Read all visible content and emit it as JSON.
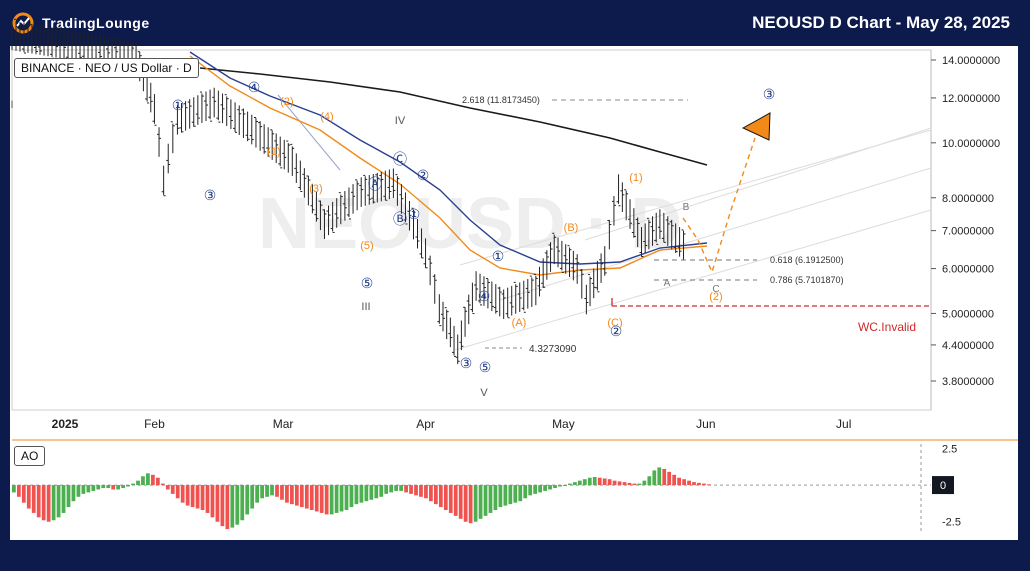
{
  "header": {
    "brand": "TradingLounge",
    "title": "NEOUSD D Chart - May 28, 2025"
  },
  "symbol_label": "BINANCE · NEO / US Dollar · D",
  "indicator_label": "AO",
  "watermark": "NEOUSD · D",
  "colors": {
    "background": "#0d1b4c",
    "accent_orange": "#f28a1a",
    "wave_blue": "#1f3a8a",
    "invalid_red": "#d12a2a",
    "ao_green": "#4caf50",
    "ao_red": "#ef5350"
  },
  "chart_data": {
    "type": "line",
    "scale": "log",
    "xaxis": {
      "ticks": [
        "2025",
        "Feb",
        "Mar",
        "Apr",
        "May",
        "Jun",
        "Jul"
      ]
    },
    "yaxis": {
      "ticks": [
        "14.0000000",
        "12.0000000",
        "10.0000000",
        "8.0000000",
        "7.0000000",
        "6.0000000",
        "5.0000000",
        "4.4000000",
        "3.8000000"
      ],
      "ylim": [
        3.5,
        15.0
      ]
    },
    "price_ohlc_approx": [
      {
        "date": "2025-01",
        "close": 15.5
      },
      {
        "date": "2025-01-28",
        "close": 14.2
      },
      {
        "date": "2025-02-01",
        "close": 11.5
      },
      {
        "date": "2025-02-03",
        "close": 8.6
      },
      {
        "date": "2025-02-06",
        "close": 11.0
      },
      {
        "date": "2025-02-14",
        "close": 11.8
      },
      {
        "date": "2025-02-24",
        "close": 10.3
      },
      {
        "date": "2025-03-03",
        "close": 9.3
      },
      {
        "date": "2025-03-10",
        "close": 7.2
      },
      {
        "date": "2025-03-18",
        "close": 8.2
      },
      {
        "date": "2025-03-25",
        "close": 8.5
      },
      {
        "date": "2025-04-01",
        "close": 6.4
      },
      {
        "date": "2025-04-04",
        "close": 5.1
      },
      {
        "date": "2025-04-08",
        "close": 4.33
      },
      {
        "date": "2025-04-12",
        "close": 5.6
      },
      {
        "date": "2025-04-18",
        "close": 5.2
      },
      {
        "date": "2025-04-25",
        "close": 5.5
      },
      {
        "date": "2025-04-29",
        "close": 6.5
      },
      {
        "date": "2025-05-04",
        "close": 6.0
      },
      {
        "date": "2025-05-06",
        "close": 5.3
      },
      {
        "date": "2025-05-10",
        "close": 6.2
      },
      {
        "date": "2025-05-13",
        "close": 8.3
      },
      {
        "date": "2025-05-18",
        "close": 6.7
      },
      {
        "date": "2025-05-22",
        "close": 7.2
      },
      {
        "date": "2025-05-28",
        "close": 6.5
      }
    ],
    "annotations": {
      "fib_levels": [
        {
          "label": "2.618 (11.8173450)",
          "value": 11.817345
        },
        {
          "label": "0.618 (6.1912500)",
          "value": 6.19125
        },
        {
          "label": "0.786 (5.7101870)",
          "value": 5.710187
        }
      ],
      "low_label": "4.3273090",
      "invalid_label": "WC.Invalid",
      "invalid_level": 5.15,
      "wave_labels": [
        "I",
        "IV",
        "III",
        "V",
        "①",
        "②",
        "③",
        "④",
        "⑤",
        "Ⓐ",
        "Ⓑ",
        "Ⓒ",
        "(1)",
        "(2)",
        "(3)",
        "(4)",
        "(5)",
        "(A)",
        "(B)",
        "(C)",
        "A",
        "B",
        "C"
      ],
      "projection_target": "③"
    },
    "ao": {
      "type": "bar",
      "label": "AO",
      "ticks": [
        "2.5",
        "0",
        "-2.5"
      ],
      "ylim": [
        -3.2,
        2.8
      ],
      "values": [
        -0.5,
        -0.8,
        -1.2,
        -1.6,
        -1.9,
        -2.2,
        -2.4,
        -2.5,
        -2.4,
        -2.2,
        -1.9,
        -1.5,
        -1.1,
        -0.8,
        -0.6,
        -0.5,
        -0.4,
        -0.3,
        -0.2,
        -0.2,
        -0.3,
        -0.3,
        -0.2,
        -0.1,
        0.1,
        0.3,
        0.6,
        0.8,
        0.7,
        0.5,
        0.1,
        -0.3,
        -0.6,
        -0.9,
        -1.2,
        -1.4,
        -1.5,
        -1.6,
        -1.7,
        -1.9,
        -2.2,
        -2.5,
        -2.8,
        -3.0,
        -2.9,
        -2.7,
        -2.4,
        -2.0,
        -1.6,
        -1.2,
        -0.9,
        -0.8,
        -0.7,
        -0.8,
        -1.0,
        -1.2,
        -1.3,
        -1.4,
        -1.5,
        -1.6,
        -1.7,
        -1.8,
        -1.9,
        -2.0,
        -2.0,
        -1.9,
        -1.8,
        -1.7,
        -1.5,
        -1.3,
        -1.2,
        -1.1,
        -1.0,
        -0.9,
        -0.8,
        -0.6,
        -0.5,
        -0.4,
        -0.4,
        -0.5,
        -0.6,
        -0.7,
        -0.8,
        -0.9,
        -1.1,
        -1.3,
        -1.5,
        -1.7,
        -1.9,
        -2.1,
        -2.3,
        -2.5,
        -2.6,
        -2.5,
        -2.3,
        -2.1,
        -1.9,
        -1.7,
        -1.5,
        -1.4,
        -1.3,
        -1.2,
        -1.1,
        -0.9,
        -0.7,
        -0.6,
        -0.5,
        -0.4,
        -0.3,
        -0.2,
        -0.1,
        0.0,
        0.1,
        0.2,
        0.3,
        0.4,
        0.5,
        0.55,
        0.5,
        0.45,
        0.4,
        0.3,
        0.25,
        0.2,
        0.15,
        0.1,
        0.1,
        0.3,
        0.6,
        1.0,
        1.2,
        1.1,
        0.9,
        0.7,
        0.5,
        0.4,
        0.3,
        0.2,
        0.15,
        0.1,
        0.05
      ]
    }
  }
}
